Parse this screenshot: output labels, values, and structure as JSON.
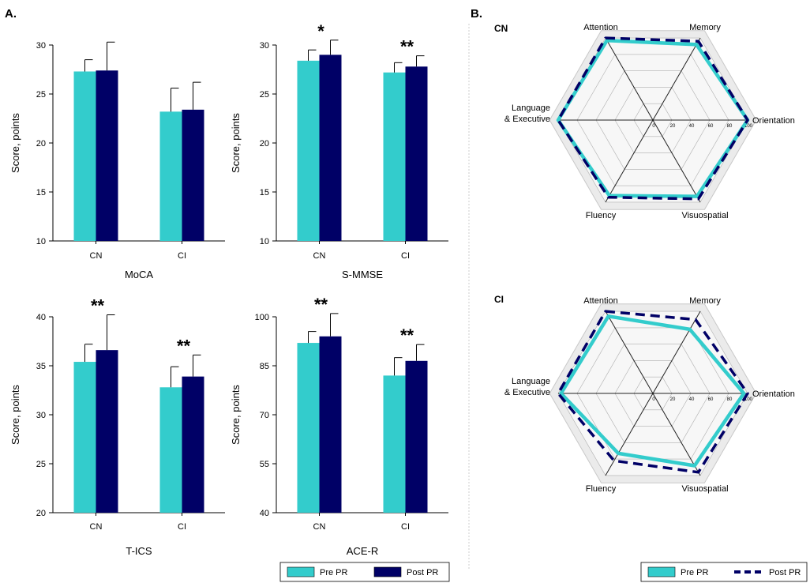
{
  "panels": {
    "a_label": "A.",
    "b_label": "B."
  },
  "colors": {
    "pre": "#33CCCC",
    "post": "#000066",
    "radar_bg": "#EBEBEB",
    "grid": "#B0B0B0",
    "axis": "#000000"
  },
  "chart_data": [
    {
      "type": "bar",
      "title": "MoCA",
      "ylabel": "Score, points",
      "ylim": [
        10,
        30
      ],
      "yticks": [
        10,
        15,
        20,
        25,
        30
      ],
      "categories": [
        "CN",
        "CI"
      ],
      "series": [
        {
          "name": "Pre PR",
          "values": [
            27.3,
            23.2
          ],
          "errors": [
            1.2,
            2.4
          ]
        },
        {
          "name": "Post PR",
          "values": [
            27.4,
            23.4
          ],
          "errors": [
            2.9,
            2.8
          ]
        }
      ],
      "annotations": [
        "",
        ""
      ]
    },
    {
      "type": "bar",
      "title": "S-MMSE",
      "ylabel": "Score, points",
      "ylim": [
        10,
        30
      ],
      "yticks": [
        10,
        15,
        20,
        25,
        30
      ],
      "categories": [
        "CN",
        "CI"
      ],
      "series": [
        {
          "name": "Pre PR",
          "values": [
            28.4,
            27.2
          ],
          "errors": [
            1.1,
            1.0
          ]
        },
        {
          "name": "Post PR",
          "values": [
            29.0,
            27.8
          ],
          "errors": [
            1.5,
            1.1
          ]
        }
      ],
      "annotations": [
        "*",
        "**"
      ]
    },
    {
      "type": "bar",
      "title": "T-ICS",
      "ylabel": "Score, points",
      "ylim": [
        20,
        40
      ],
      "yticks": [
        20,
        25,
        30,
        35,
        40
      ],
      "categories": [
        "CN",
        "CI"
      ],
      "series": [
        {
          "name": "Pre PR",
          "values": [
            35.4,
            32.8
          ],
          "errors": [
            1.8,
            2.1
          ]
        },
        {
          "name": "Post PR",
          "values": [
            36.6,
            33.9
          ],
          "errors": [
            3.6,
            2.2
          ]
        }
      ],
      "annotations": [
        "**",
        "**"
      ]
    },
    {
      "type": "bar",
      "title": "ACE-R",
      "ylabel": "Score, points",
      "ylim": [
        40,
        100
      ],
      "yticks": [
        40,
        55,
        70,
        85,
        100
      ],
      "categories": [
        "CN",
        "CI"
      ],
      "series": [
        {
          "name": "Pre PR",
          "values": [
            92,
            82
          ],
          "errors": [
            3.5,
            5.5
          ]
        },
        {
          "name": "Post PR",
          "values": [
            94,
            86.5
          ],
          "errors": [
            7,
            5
          ]
        }
      ],
      "annotations": [
        "**",
        "**"
      ]
    },
    {
      "type": "radar",
      "group": "CN",
      "categories": [
        "Attention",
        "Memory",
        "Orientation",
        "Visuospatial",
        "Fluency",
        "Language\n& Executive"
      ],
      "rlim": [
        0,
        100
      ],
      "rticks": [
        0,
        20,
        40,
        60,
        80,
        100
      ],
      "series": [
        {
          "name": "Pre PR",
          "values": [
            97,
            92,
            100,
            93,
            92,
            100
          ]
        },
        {
          "name": "Post PR",
          "values": [
            100,
            96,
            100,
            96,
            94,
            100
          ]
        }
      ]
    },
    {
      "type": "radar",
      "group": "CI",
      "categories": [
        "Attention",
        "Memory",
        "Orientation",
        "Visuospatial",
        "Fluency",
        "Language\n& Executive"
      ],
      "rlim": [
        0,
        100
      ],
      "rticks": [
        0,
        20,
        40,
        60,
        80,
        100
      ],
      "series": [
        {
          "name": "Pre PR",
          "values": [
            94,
            78,
            96,
            88,
            73,
            97
          ]
        },
        {
          "name": "Post PR",
          "values": [
            100,
            90,
            100,
            96,
            82,
            100
          ]
        }
      ]
    }
  ],
  "legends": {
    "bar": {
      "pre": "Pre PR",
      "post": "Post PR"
    },
    "radar": {
      "pre": "Pre PR",
      "post": "Post PR"
    }
  }
}
